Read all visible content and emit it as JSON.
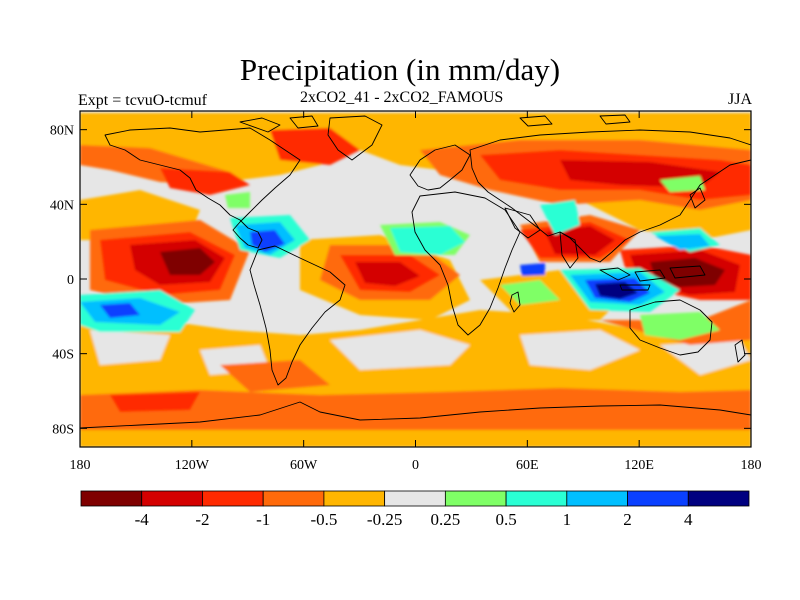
{
  "title": "Precipitation (in mm/day)",
  "left_label": "Expt = tcvuO-tcmuf",
  "center_label": "2xCO2_41 - 2xCO2_FAMOUS",
  "right_label": "JJA",
  "map": {
    "projection": "cylindrical-equidistant",
    "lon_range": [
      -180,
      180
    ],
    "lat_range": [
      -90,
      90
    ],
    "lat_ticks": [
      {
        "value": 80,
        "label": "80N"
      },
      {
        "value": 40,
        "label": "40N"
      },
      {
        "value": 0,
        "label": "0"
      },
      {
        "value": -40,
        "label": "40S"
      },
      {
        "value": -80,
        "label": "80S"
      }
    ],
    "lon_ticks": [
      {
        "value": -180,
        "label": "180"
      },
      {
        "value": -120,
        "label": "120W"
      },
      {
        "value": -60,
        "label": "60W"
      },
      {
        "value": 0,
        "label": "0"
      },
      {
        "value": 60,
        "label": "60E"
      },
      {
        "value": 120,
        "label": "120E"
      },
      {
        "value": 180,
        "label": "180"
      }
    ],
    "background_color": "#e6e6e6"
  },
  "colorbar": {
    "colors": [
      "#7f0000",
      "#d40000",
      "#ff2a00",
      "#ff6a0a",
      "#ffb600",
      "#e6e6e6",
      "#7fff66",
      "#2affd4",
      "#00bfff",
      "#0a40ff",
      "#000080"
    ],
    "labels": [
      "-4",
      "-2",
      "-1",
      "-0.5",
      "-0.25",
      "0.25",
      "0.5",
      "1",
      "2",
      "4"
    ]
  },
  "colors": {
    "drier_strong": "#7f0000",
    "drier": "#d40000",
    "drier_medium": "#ff2a00",
    "drier_light": "#ff6a0a",
    "drier_slight": "#ffb600",
    "neutral": "#e6e6e6",
    "wetter_slight": "#7fff66",
    "wetter_light": "#2affd4",
    "wetter_medium": "#00bfff",
    "wetter": "#0a40ff",
    "wetter_strong": "#000080"
  }
}
